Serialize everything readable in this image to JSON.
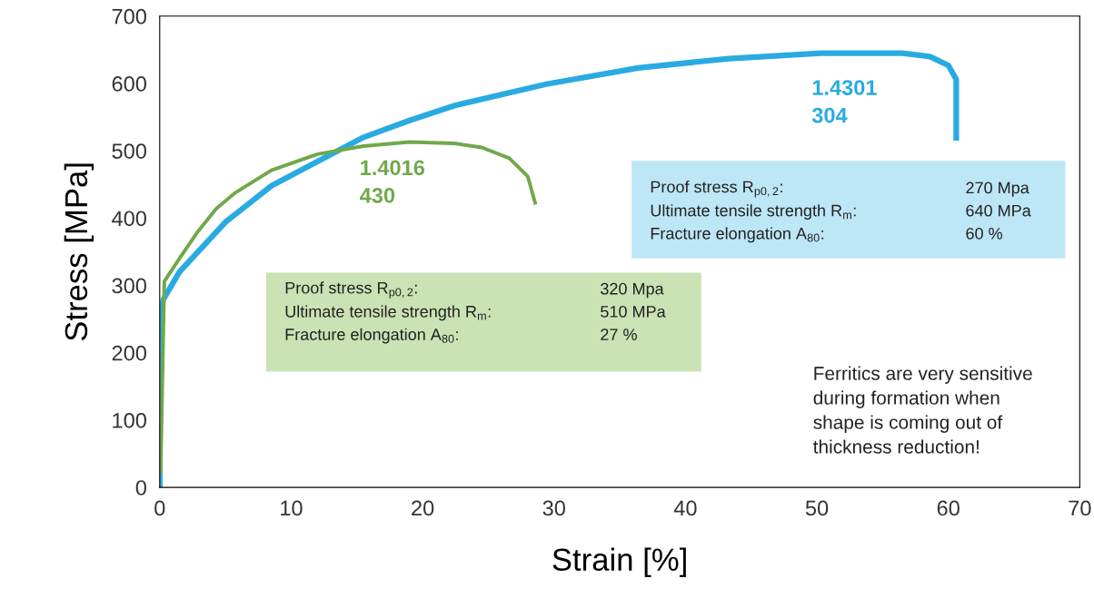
{
  "chart_data": {
    "type": "line",
    "xlabel": "Strain [%]",
    "ylabel": "Stress [MPa]",
    "xlim": [
      0,
      70
    ],
    "ylim": [
      0,
      700
    ],
    "xticks": [
      0,
      10,
      20,
      30,
      40,
      50,
      60,
      70
    ],
    "yticks": [
      0,
      100,
      200,
      300,
      400,
      500,
      600,
      700
    ],
    "grid": false,
    "legend": false,
    "marker": "none",
    "line_style": "solid",
    "series": [
      {
        "name": "1.4301\n304",
        "color": "#29abe2",
        "x": [
          0,
          0,
          0.3,
          1.5,
          5,
          8.5,
          15.5,
          19,
          22.4,
          29.4,
          36.4,
          43.3,
          50.3,
          56.5,
          58.6,
          60,
          60.6,
          60.6
        ],
        "values": [
          0,
          260,
          280,
          320,
          394,
          448,
          520,
          545,
          567,
          599,
          623,
          637,
          645,
          645,
          640,
          627,
          606,
          515
        ]
      },
      {
        "name": "1.4016\n430",
        "color": "#70a84b",
        "x": [
          0.07,
          0.35,
          1.5,
          2.9,
          4.3,
          5.7,
          8.5,
          12,
          15.5,
          19,
          22.4,
          24.5,
          26.6,
          28,
          28.6
        ],
        "values": [
          20,
          306,
          340,
          380,
          414,
          437,
          471,
          495,
          507,
          513,
          511,
          505,
          489,
          462,
          420
        ]
      }
    ],
    "annotations": [
      "Proof stress R$_{p0,2}$:",
      "270 Mpa",
      "Ultimate tensile strength R$_{m}$:",
      "640 MPa",
      "Fracture elongation A$_{80}$:",
      "60 %",
      "Proof stress R$_{p0,2}$:",
      "320 Mpa",
      "Ultimate tensile strength R$_{m}$:",
      "510 MPa",
      "Fracture elongation A$_{80}$:",
      "27 %",
      "Ferritics are very sensitive\nduring formation when\nshape is coming out of\nthickness reduction!"
    ]
  }
}
